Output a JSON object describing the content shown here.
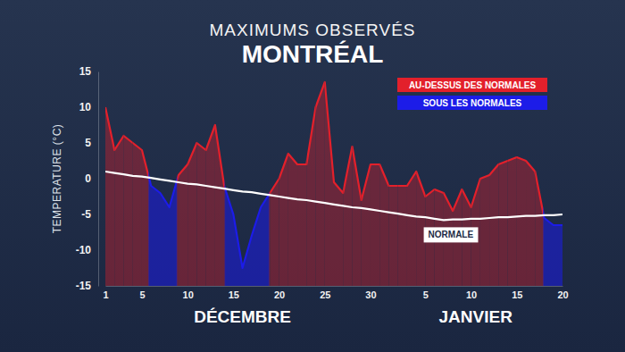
{
  "chart_data": {
    "type": "area",
    "title": "MAXIMUMS OBSERVÉS",
    "subtitle": "MONTRÉAL",
    "y_label": "TEMPERATURE (°C)",
    "categories": [
      "1",
      null,
      null,
      null,
      "5",
      null,
      null,
      null,
      null,
      "10",
      null,
      null,
      null,
      null,
      "15",
      null,
      null,
      null,
      null,
      "20",
      null,
      null,
      null,
      null,
      "25",
      null,
      null,
      null,
      null,
      "30",
      null,
      null,
      null,
      null,
      null,
      "5",
      null,
      null,
      null,
      null,
      "10",
      null,
      null,
      null,
      null,
      "15",
      null,
      null,
      null,
      null,
      "20"
    ],
    "x_groups": [
      {
        "label": "DÉCEMBRE",
        "start": 0,
        "end": 30
      },
      {
        "label": "JANVIER",
        "start": 31,
        "end": 50
      }
    ],
    "series": [
      {
        "name": "NORMALE",
        "type": "line",
        "color": "#ffffff",
        "values": [
          1.0,
          0.8,
          0.6,
          0.4,
          0.3,
          0.1,
          -0.1,
          -0.3,
          -0.5,
          -0.7,
          -0.8,
          -1.0,
          -1.2,
          -1.4,
          -1.6,
          -1.8,
          -1.9,
          -2.1,
          -2.3,
          -2.5,
          -2.7,
          -2.9,
          -3.0,
          -3.2,
          -3.4,
          -3.6,
          -3.8,
          -4.0,
          -4.1,
          -4.3,
          -4.5,
          -4.7,
          -4.9,
          -5.1,
          -5.3,
          -5.4,
          -5.6,
          -5.8,
          -5.7,
          -5.7,
          -5.6,
          -5.6,
          -5.5,
          -5.4,
          -5.4,
          -5.3,
          -5.2,
          -5.2,
          -5.1,
          -5.1,
          -5.0
        ]
      },
      {
        "type": "area",
        "values": [
          10,
          4,
          6,
          5,
          4,
          -1,
          -2,
          -4,
          0.5,
          2,
          5,
          4,
          7.5,
          -1,
          -5,
          -12.5,
          -8,
          -4,
          -2,
          0,
          3.5,
          2,
          2,
          10,
          13.5,
          -0.5,
          -2,
          4.5,
          -3,
          2,
          2,
          -1,
          -1,
          -1,
          1,
          -2.5,
          -1.5,
          -2,
          -4.5,
          -1.5,
          -4,
          0,
          0.5,
          2,
          2.5,
          3,
          2.5,
          1,
          -5.5,
          -6.5,
          -6.5
        ]
      }
    ],
    "annotations": [
      {
        "text": "AU-DESSUS DES NORMALES",
        "color": "#e3202b"
      },
      {
        "text": "SOUS LES NORMALES",
        "color": "#1c1ce8"
      }
    ],
    "legend": "top-right",
    "ylim": [
      -15,
      15
    ],
    "yticks": [
      15,
      10,
      5,
      0,
      -5,
      -10,
      -15
    ],
    "grid": false
  }
}
